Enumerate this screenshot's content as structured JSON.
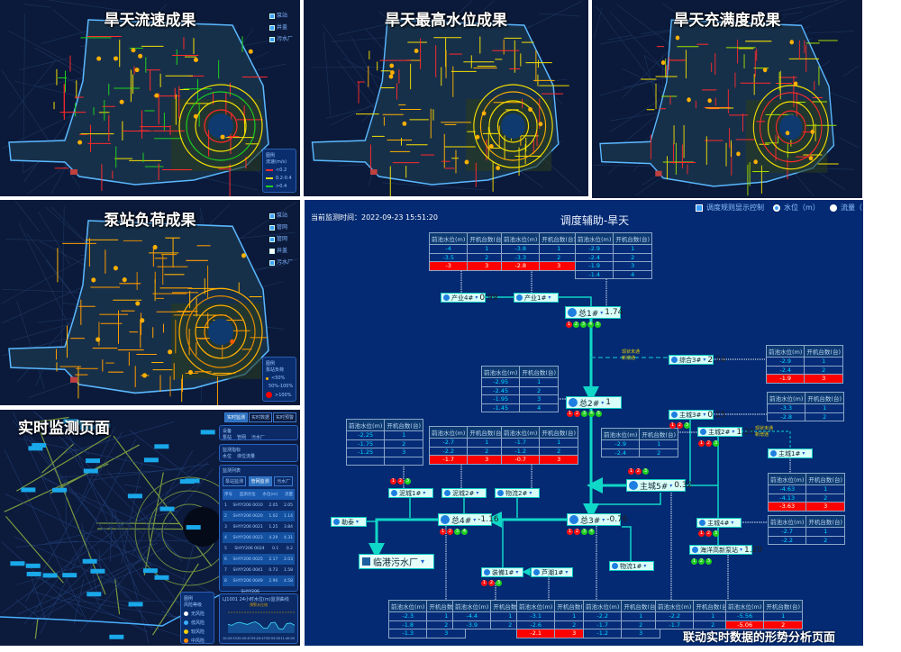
{
  "maps": [
    {
      "title": "旱天流速成果",
      "layers": [
        "泵站",
        "井盖",
        "污水厂"
      ],
      "legend_title": "图例",
      "legend_sub": "流速(m/s)",
      "legend_items": [
        {
          "label": "<0.2",
          "color": "#ff2a2a"
        },
        {
          "label": "0.2-0.4",
          "color": "#f5e000"
        },
        {
          "label": ">0.4",
          "color": "#1ed01e"
        }
      ],
      "pipe_colors": [
        "#ff2a2a",
        "#f5e000",
        "#1ed01e",
        "#ff2a2a"
      ]
    },
    {
      "title": "旱天最高水位成果",
      "layers": [],
      "legend_title": "",
      "legend_sub": "",
      "legend_items": [],
      "pipe_colors": [
        "#f5e000",
        "#f5e000",
        "#ffb000",
        "#ff2a2a"
      ]
    },
    {
      "title": "旱天充满度成果",
      "layers": [],
      "legend_title": "",
      "legend_sub": "",
      "legend_items": [],
      "pipe_colors": [
        "#ff2a2a",
        "#f5e000",
        "#ff2a2a",
        "#a0e000"
      ]
    },
    {
      "title": "泵站负荷成果",
      "layers": [
        "泵站",
        "管网",
        "管网",
        "井盖",
        "污水厂"
      ],
      "legend_title": "图例",
      "legend_sub": "泵站负荷",
      "legend_items": [
        {
          "label": "<50%",
          "color": "#ffb000"
        },
        {
          "label": "50%-100%",
          "color": "#ff6a00"
        },
        {
          "label": ">100%",
          "color": "#ff0000"
        }
      ],
      "pipe_colors": [
        "#ff9a00",
        "#ffb000",
        "#e08a00",
        "#ff9a00"
      ],
      "plant_label": "临港污水厂"
    }
  ],
  "monitor": {
    "title": "实时监测页面",
    "top_tabs": [
      "实时监测",
      "实时数据",
      "实时预警"
    ],
    "device_title": "设备",
    "devices": [
      {
        "label": "泵站",
        "checked": false
      },
      {
        "label": "管网",
        "checked": true
      },
      {
        "label": "污水厂",
        "checked": false
      }
    ],
    "indicator_title": "监测指标",
    "indicators": [
      {
        "label": "水位",
        "selected": true
      },
      {
        "label": "液位流量",
        "selected": false
      }
    ],
    "list_title": "监测列表",
    "list_tabs": [
      "泵站监测",
      "管网监测",
      "污水厂"
    ],
    "columns": [
      "序号",
      "监测点位",
      "水位(m)",
      "流量"
    ],
    "rows": [
      [
        "1",
        "SHYY206 0010",
        "2.05",
        "2.05"
      ],
      [
        "2",
        "SHYY206 0020",
        "1.02",
        "1.14"
      ],
      [
        "3",
        "SHYY206 0021",
        "1.25",
        "3.84"
      ],
      [
        "4",
        "SHYY206 0023",
        "4.29",
        "4.31"
      ],
      [
        "5",
        "SHYY206 0024",
        "0.1",
        "0.2"
      ],
      [
        "6",
        "SHYY206 0025",
        "2.17",
        "2.03"
      ],
      [
        "7",
        "SHYY206 0041",
        "0.73",
        "1.58"
      ],
      [
        "8",
        "SHYY206 0049",
        "2.90",
        "4.58"
      ],
      [
        "",
        "SHYY206",
        "",
        ""
      ]
    ],
    "legend_title": "图例",
    "legend_sub": "风险等级",
    "legend_items": [
      {
        "label": "无风险",
        "color": "#ffffff"
      },
      {
        "label": "低风险",
        "color": "#3ab0ff"
      },
      {
        "label": "较风险",
        "color": "#f5d000"
      },
      {
        "label": "中风险",
        "color": "#ff8a00"
      },
      {
        "label": "高风险",
        "color": "#ff2a2a"
      }
    ],
    "chart_title": "LJ1001 24小时水位(m)监测曲线",
    "chart_series": "预警水位线",
    "chart_x": [
      "10:43:33",
      "20:20:47",
      "05:20:47",
      "05:53:00",
      "11:40:00"
    ],
    "chart_values": [
      2,
      1.8,
      2.3,
      2.5,
      2.2,
      2.0,
      2.4,
      2.6,
      2.1,
      1.2,
      1.1,
      2.4,
      2.5,
      1.0,
      0.9,
      2.2,
      2.3,
      1.8
    ]
  },
  "dispatch": {
    "time_label": "当前监测时间：",
    "time_value": "2022-09-23 15:51:20",
    "title": "调度辅助-旱天",
    "show_rules_label": "调度规则显示控制",
    "show_rules_checked": true,
    "mode_options": [
      {
        "label": "水位（m）",
        "selected": true
      },
      {
        "label": "流量（",
        "selected": false
      }
    ],
    "table_headers": [
      "前池水位(m)",
      "开机台数(台)"
    ],
    "tables": [
      {
        "rows": [
          [
            "-4",
            "1"
          ],
          [
            "-3.5",
            "2"
          ],
          [
            "-3",
            "3"
          ]
        ],
        "alert_row": 2
      },
      {
        "rows": [
          [
            "-3.8",
            "1"
          ],
          [
            "-3.3",
            "2"
          ],
          [
            "-2.8",
            "3"
          ]
        ],
        "alert_row": 2
      },
      {
        "rows": [
          [
            "-2.9",
            "1"
          ],
          [
            "-2.4",
            "2"
          ],
          [
            "-1.9",
            "3"
          ],
          [
            "-1.4",
            "4"
          ]
        ],
        "alert_row": null
      },
      {
        "rows": [
          [
            "-2.9",
            "1"
          ],
          [
            "-2.4",
            "2"
          ],
          [
            "-1.9",
            "3"
          ]
        ],
        "alert_row": 2
      },
      {
        "rows": [
          [
            "-2.95",
            "1"
          ],
          [
            "-2.45",
            "2"
          ],
          [
            "-1.95",
            "3"
          ],
          [
            "-1.45",
            "4"
          ]
        ],
        "alert_row": null
      },
      {
        "rows": [
          [
            "-2.25",
            "1"
          ],
          [
            "-1.75",
            "2"
          ],
          [
            "-1.25",
            "3"
          ],
          [
            "",
            ""
          ]
        ],
        "alert_row": null
      },
      {
        "rows": [
          [
            "-2.7",
            "1"
          ],
          [
            "-2.2",
            "2"
          ],
          [
            "-1.7",
            "3"
          ]
        ],
        "alert_row": 2
      },
      {
        "rows": [
          [
            "-1.7",
            "1"
          ],
          [
            "-1.2",
            "2"
          ],
          [
            "-0.7",
            "3"
          ]
        ],
        "alert_row": 2
      },
      {
        "rows": [
          [
            "-3.3",
            "1"
          ],
          [
            "-2.8",
            "2"
          ]
        ],
        "alert_row": null
      },
      {
        "rows": [
          [
            "-2.9",
            "1"
          ],
          [
            "-2.4",
            "2"
          ]
        ],
        "alert_row": null
      },
      {
        "rows": [
          [
            "-4.63",
            "1"
          ],
          [
            "-4.13",
            "2"
          ],
          [
            "-3.63",
            "3"
          ]
        ],
        "alert_row": 2
      },
      {
        "rows": [
          [
            "-2.7",
            "1"
          ],
          [
            "-2.2",
            "2"
          ]
        ],
        "alert_row": null
      },
      {
        "rows": [
          [
            "-2.3",
            "1"
          ],
          [
            "-1.8",
            "2"
          ],
          [
            "-1.3",
            "3"
          ]
        ],
        "alert_row": null
      },
      {
        "rows": [
          [
            "-4.4",
            "1"
          ],
          [
            "-3.9",
            "2"
          ]
        ],
        "alert_row": null
      },
      {
        "rows": [
          [
            "-3.1",
            "1"
          ],
          [
            "-2.6",
            "2"
          ],
          [
            "-2.1",
            "3"
          ]
        ],
        "alert_row": 2
      },
      {
        "rows": [
          [
            "-2.2",
            "1"
          ],
          [
            "-1.7",
            "2"
          ],
          [
            "-1.2",
            "3"
          ]
        ],
        "alert_row": null
      },
      {
        "rows": [
          [
            "-2.2",
            "1"
          ],
          [
            "-1.7",
            "2"
          ]
        ],
        "alert_row": null
      },
      {
        "rows": [
          [
            "-5.56",
            "1"
          ],
          [
            "-5.06",
            "2"
          ]
        ],
        "alert_row": 1
      }
    ],
    "nodes": [
      {
        "name": "产业4#",
        "value": "0.99",
        "pumps": []
      },
      {
        "name": "产业1#",
        "value": "",
        "pumps": []
      },
      {
        "name": "总1#",
        "value": "1.74",
        "pumps": [
          "red",
          "green",
          "green",
          "green",
          "green"
        ]
      },
      {
        "name": "综合3#",
        "value": "2.74",
        "pumps": []
      },
      {
        "name": "总2#",
        "value": "1",
        "pumps": [
          "red",
          "red",
          "green",
          "green",
          "green"
        ]
      },
      {
        "name": "泥城1#",
        "value": "",
        "pumps": [
          "red",
          "red",
          "green"
        ]
      },
      {
        "name": "泥城2#",
        "value": "",
        "pumps": []
      },
      {
        "name": "物流2#",
        "value": "",
        "pumps": []
      },
      {
        "name": "勒泰",
        "value": "",
        "pumps": []
      },
      {
        "name": "总4#",
        "value": "-1.16",
        "pumps": [
          "red",
          "red",
          "green",
          "green"
        ]
      },
      {
        "name": "总3#",
        "value": "-0.76",
        "pumps": [
          "red",
          "red",
          "green",
          "green"
        ]
      },
      {
        "name": "装備1#",
        "value": "",
        "pumps": [
          "red",
          "red",
          "green"
        ]
      },
      {
        "name": "芦潮1#",
        "value": "",
        "pumps": []
      },
      {
        "name": "主城5#",
        "value": "0.32",
        "pumps": [
          "red",
          "red",
          "green"
        ]
      },
      {
        "name": "主城3#",
        "value": "0.15",
        "pumps": [
          "red",
          "red",
          "green"
        ]
      },
      {
        "name": "主城2#",
        "value": "1.26",
        "pumps": [
          "red",
          "red",
          "green"
        ]
      },
      {
        "name": "主城1#",
        "value": "",
        "pumps": []
      },
      {
        "name": "主城4#",
        "value": "",
        "pumps": [
          "red",
          "red",
          "green"
        ]
      },
      {
        "name": "海洋高新泵站",
        "value": "1.29",
        "pumps": [
          "green",
          "green",
          "green"
        ]
      },
      {
        "name": "物流1#",
        "value": "",
        "pumps": []
      }
    ],
    "link_notes": [
      [
        "现状未通",
        "新增通"
      ],
      [
        "现状未通",
        "新增通"
      ]
    ],
    "plant": "临港污水厂",
    "caption": "联动实时数据的形势分析页面"
  }
}
